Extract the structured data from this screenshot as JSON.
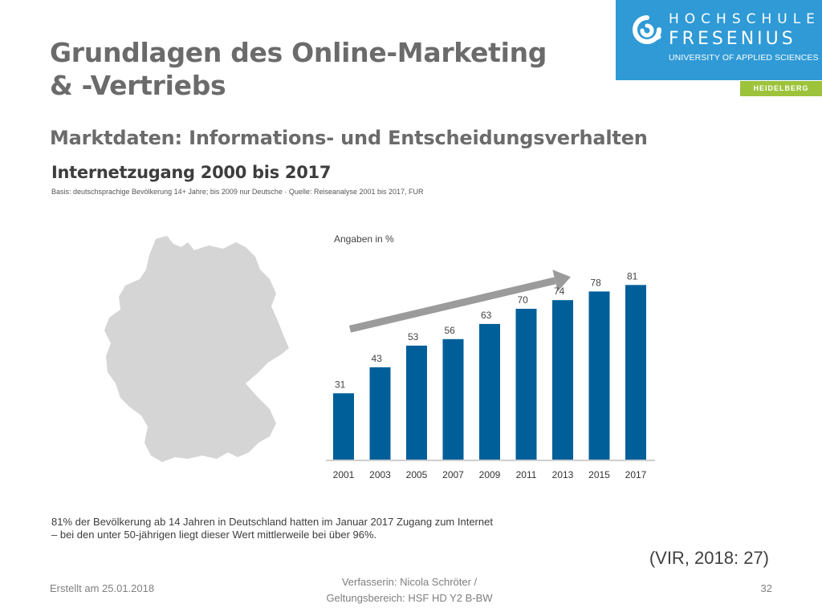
{
  "slide": {
    "title_line1": "Grundlagen des Online-Marketing",
    "title_line2": "& -Vertriebs",
    "subtitle": "Marktdaten: Informations- und Entscheidungsverhalten",
    "citation": "(VIR, 2018: 27)"
  },
  "logo": {
    "line1": "HOCHSCHULE",
    "line2": "FRESENIUS",
    "line3": "UNIVERSITY OF APPLIED SCIENCES",
    "location": "HEIDELBERG",
    "brand_color": "#2f9ad6",
    "location_color": "#9dc33b",
    "icon": "fresenius-logo-mark"
  },
  "figure": {
    "title": "Internetzugang 2000 bis 2017",
    "source": "Basis: deutschsprachige Bevölkerung 14+ Jahre; bis 2009 nur Deutsche · Quelle: Reiseanalyse 2001 bis 2017, FUR",
    "map_icon": "germany-map",
    "footnote_line1": "81% der Bevölkerung ab 14 Jahren in Deutschland hatten im Januar 2017 Zugang zum Internet",
    "footnote_line2": "– bei den unter 50-jährigen liegt dieser Wert mittlerweile bei über 96%."
  },
  "chart_data": {
    "type": "bar",
    "unit_label": "Angaben in %",
    "categories": [
      "2001",
      "2003",
      "2005",
      "2007",
      "2009",
      "2011",
      "2013",
      "2015",
      "2017"
    ],
    "values": [
      31,
      43,
      53,
      56,
      63,
      70,
      74,
      78,
      81
    ],
    "ylim": [
      0,
      100
    ],
    "grid": false,
    "bar_color": "#005f99",
    "trend_arrow": true,
    "arrow_color": "#9b9b9b"
  },
  "footer": {
    "date": "Erstellt am 25.01.2018",
    "author_line1": "Verfasserin: Nicola Schröter /",
    "author_line2": "Geltungsbereich: HSF HD Y2 B-BW",
    "page": "32"
  }
}
